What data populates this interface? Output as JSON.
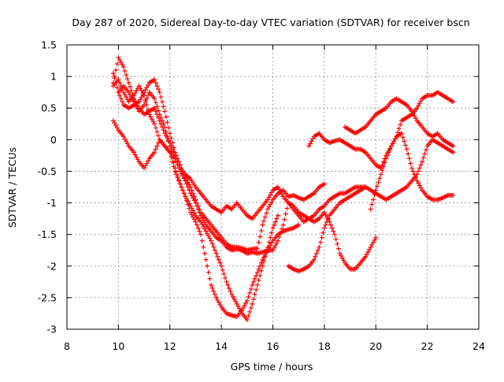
{
  "chart_data": {
    "type": "scatter",
    "title": "Day 287 of 2020, Sidereal Day-to-day VTEC variation (SDTVAR) for receiver bscn",
    "xlabel": "GPS time / hours",
    "ylabel": "SDTVAR / TECUs",
    "xlim": [
      8,
      24
    ],
    "ylim": [
      -3,
      1.5
    ],
    "x_ticks": [
      "8",
      "10",
      "12",
      "14",
      "16",
      "18",
      "20",
      "22",
      "24"
    ],
    "y_ticks": [
      "1.5",
      "1",
      "0.5",
      "0",
      "-0.5",
      "-1",
      "-1.5",
      "-2",
      "-2.5",
      "-3"
    ],
    "grid": true,
    "marker": "+",
    "color": "#ff0000",
    "series": [
      {
        "x": [
          9.8,
          10.0,
          10.2,
          10.4,
          10.6,
          10.8,
          11.0,
          11.2,
          11.4,
          11.6,
          11.8,
          12.0,
          12.2,
          12.4,
          12.6,
          12.8,
          13.0,
          13.2,
          13.4,
          13.6,
          13.8,
          14.0,
          14.2,
          14.4,
          14.6,
          14.8,
          15.0,
          15.2,
          15.4,
          15.6,
          15.8,
          16.0,
          16.2,
          16.4,
          16.6,
          16.8,
          17.0,
          17.2,
          17.4,
          17.6,
          17.8,
          18.0
        ],
        "y": [
          1.05,
          0.75,
          0.55,
          0.5,
          0.55,
          0.6,
          0.75,
          0.9,
          0.95,
          0.75,
          0.45,
          0.1,
          -0.2,
          -0.4,
          -0.6,
          -0.75,
          -0.95,
          -1.15,
          -1.25,
          -1.35,
          -1.45,
          -1.55,
          -1.65,
          -1.7,
          -1.7,
          -1.72,
          -1.75,
          -1.73,
          -1.72,
          -1.35,
          -1.1,
          -0.95,
          -0.85,
          -0.8,
          -0.9,
          -0.88,
          -0.92,
          -0.95,
          -0.9,
          -0.85,
          -0.75,
          -0.7
        ]
      },
      {
        "x": [
          9.8,
          10.0,
          10.2,
          10.4,
          10.6,
          10.8,
          11.0,
          11.2,
          11.4,
          11.6,
          11.8,
          12.0,
          12.2,
          12.4,
          12.6,
          12.8,
          13.0,
          13.2,
          13.4,
          13.6,
          13.8,
          14.0,
          14.2,
          14.4,
          14.6,
          14.8,
          15.0,
          15.2,
          15.4,
          15.6,
          15.8,
          16.0,
          16.2,
          16.4,
          16.6,
          16.8,
          17.0,
          17.2,
          17.4,
          17.6,
          17.8,
          18.0,
          18.2,
          18.4,
          18.6,
          18.8,
          19.0,
          19.2,
          19.4,
          19.6
        ],
        "y": [
          0.9,
          1.3,
          1.15,
          0.9,
          0.65,
          0.5,
          0.4,
          0.45,
          0.5,
          0.3,
          0.1,
          -0.05,
          -0.25,
          -0.45,
          -0.55,
          -0.62,
          -0.75,
          -0.85,
          -0.95,
          -1.05,
          -1.1,
          -1.15,
          -1.05,
          -1.1,
          -1.0,
          -1.1,
          -1.2,
          -1.25,
          -1.15,
          -1.05,
          -0.95,
          -0.8,
          -0.75,
          -0.9,
          -1.0,
          -1.1,
          -1.2,
          -1.3,
          -1.25,
          -1.2,
          -1.1,
          -1.05,
          -0.95,
          -0.9,
          -0.85,
          -0.85,
          -0.8,
          -0.75,
          -0.75,
          -0.75
        ]
      },
      {
        "x": [
          9.8,
          10.0,
          10.2,
          10.4,
          10.6,
          10.8,
          11.0,
          11.2,
          11.4,
          11.6,
          11.8,
          12.0,
          12.2,
          12.4,
          12.6,
          12.8,
          13.0,
          13.2,
          13.4,
          13.6,
          13.8,
          14.0,
          14.2,
          14.4,
          14.6,
          14.8,
          15.0,
          15.2,
          15.4,
          15.6,
          15.8,
          16.0,
          16.2,
          16.4,
          16.6,
          16.8,
          17.0,
          17.2,
          17.4,
          17.6,
          17.8,
          18.0,
          18.2,
          18.4,
          18.6,
          18.8,
          19.0,
          19.2,
          19.4,
          19.6,
          19.8,
          20.0
        ],
        "y": [
          0.85,
          0.95,
          0.75,
          0.6,
          0.7,
          0.85,
          0.7,
          0.4,
          0.25,
          0.0,
          -0.1,
          -0.2,
          -0.3,
          -0.5,
          -0.65,
          -0.85,
          -1.0,
          -1.2,
          -1.35,
          -1.45,
          -1.55,
          -1.6,
          -1.7,
          -1.75,
          -1.73,
          -1.75,
          -1.8,
          -1.78,
          -1.8,
          -1.78,
          -1.75,
          -1.75,
          -1.6,
          -1.35,
          -1.0,
          -1.05,
          -1.15,
          -1.2,
          -1.25,
          -1.3,
          -1.25,
          -1.15,
          -1.3,
          -1.5,
          -1.8,
          -1.95,
          -2.05,
          -2.05,
          -1.95,
          -1.85,
          -1.7,
          -1.55
        ]
      },
      {
        "x": [
          9.8,
          10.0,
          10.2,
          10.4,
          10.6,
          10.8,
          11.0,
          11.2,
          11.4,
          11.6,
          11.8,
          12.0,
          12.2,
          12.4,
          12.6,
          12.8,
          13.0,
          13.2,
          13.4,
          13.6,
          13.8,
          14.0,
          14.2,
          14.4,
          14.6,
          14.8,
          15.0,
          15.2,
          15.4,
          15.6,
          15.8,
          16.0,
          16.2,
          16.4,
          16.6,
          16.8,
          17.0
        ],
        "y": [
          0.3,
          0.15,
          0.05,
          -0.1,
          -0.2,
          -0.35,
          -0.45,
          -0.3,
          -0.2,
          0.0,
          -0.1,
          -0.2,
          -0.5,
          -0.7,
          -0.9,
          -1.15,
          -1.3,
          -1.5,
          -1.9,
          -2.3,
          -2.5,
          -2.65,
          -2.75,
          -2.78,
          -2.8,
          -2.7,
          -2.55,
          -2.3,
          -2.1,
          -1.9,
          -1.75,
          -1.6,
          -1.5,
          -1.45,
          -1.42,
          -1.4,
          -1.35
        ]
      },
      {
        "x": [
          10.0,
          10.2,
          10.4,
          10.6,
          10.8,
          11.0,
          11.2,
          11.4,
          11.6,
          11.8,
          12.0,
          12.2,
          12.4,
          12.6,
          12.8,
          13.0,
          13.2,
          13.4,
          13.6,
          13.8,
          14.0,
          14.2,
          14.4,
          14.6,
          14.8,
          15.0,
          15.2,
          15.4,
          15.6,
          15.8,
          16.0,
          16.2
        ],
        "y": [
          0.75,
          0.85,
          0.75,
          0.6,
          0.45,
          0.55,
          0.75,
          0.65,
          0.4,
          0.2,
          -0.1,
          -0.45,
          -0.7,
          -0.9,
          -1.05,
          -1.2,
          -1.3,
          -1.45,
          -1.6,
          -1.8,
          -2.0,
          -2.25,
          -2.45,
          -2.6,
          -2.75,
          -2.85,
          -2.6,
          -2.3,
          -2.0,
          -1.7,
          -1.4,
          -1.2
        ]
      },
      {
        "x": [
          16.6,
          16.8,
          17.0,
          17.2,
          17.4,
          17.6,
          17.8,
          18.0,
          18.2,
          18.4,
          18.6,
          18.8,
          19.0,
          19.2,
          19.4,
          19.6,
          19.8,
          20.0,
          20.2,
          20.4,
          20.6,
          20.8,
          21.0,
          21.2,
          21.4,
          21.6,
          21.8,
          22.0,
          22.2,
          22.4,
          22.6,
          22.8,
          23.0
        ],
        "y": [
          -2.0,
          -2.05,
          -2.08,
          -2.05,
          -2.0,
          -1.9,
          -1.7,
          -1.4,
          -1.2,
          -1.1,
          -1.0,
          -0.95,
          -0.9,
          -0.85,
          -0.8,
          -0.75,
          -0.8,
          -0.85,
          -0.9,
          -0.95,
          -0.9,
          -0.85,
          -0.8,
          -0.75,
          -0.65,
          -0.55,
          -0.35,
          -0.1,
          0.0,
          -0.05,
          -0.1,
          -0.15,
          -0.2
        ]
      },
      {
        "x": [
          17.4,
          17.6,
          17.8,
          18.0,
          18.2,
          18.4,
          18.6,
          18.8,
          19.0,
          19.2,
          19.4,
          19.6,
          19.8,
          20.0,
          20.2,
          20.4,
          20.6,
          20.8,
          21.0,
          21.2,
          21.4,
          21.6,
          21.8,
          22.0,
          22.2,
          22.4,
          22.6,
          22.8,
          23.0
        ],
        "y": [
          -0.1,
          0.05,
          0.1,
          0.0,
          -0.05,
          -0.02,
          0.0,
          -0.05,
          -0.1,
          -0.15,
          -0.15,
          -0.2,
          -0.3,
          -0.4,
          -0.45,
          -0.25,
          -0.1,
          0.05,
          0.1,
          -0.15,
          -0.45,
          -0.65,
          -0.8,
          -0.9,
          -0.95,
          -0.95,
          -0.92,
          -0.88,
          -0.88
        ]
      },
      {
        "x": [
          18.8,
          19.0,
          19.2,
          19.4,
          19.6,
          19.8,
          20.0,
          20.2,
          20.4,
          20.6,
          20.8,
          21.0,
          21.2,
          21.4,
          21.6,
          21.8,
          22.0,
          22.2,
          22.4,
          22.6,
          22.8,
          23.0
        ],
        "y": [
          0.2,
          0.15,
          0.1,
          0.15,
          0.2,
          0.3,
          0.4,
          0.45,
          0.5,
          0.6,
          0.65,
          0.6,
          0.55,
          0.45,
          0.3,
          0.2,
          0.1,
          0.05,
          0.1,
          0.0,
          -0.05,
          -0.1
        ]
      },
      {
        "x": [
          19.8,
          20.0,
          20.2,
          20.4,
          20.6,
          20.8,
          21.0,
          21.2,
          21.4,
          21.6,
          21.8,
          22.0,
          22.2,
          22.4,
          22.6,
          22.8,
          23.0
        ],
        "y": [
          -1.1,
          -0.8,
          -0.55,
          -0.3,
          -0.1,
          0.05,
          0.3,
          0.35,
          0.4,
          0.5,
          0.65,
          0.7,
          0.7,
          0.75,
          0.7,
          0.65,
          0.6
        ]
      }
    ]
  }
}
